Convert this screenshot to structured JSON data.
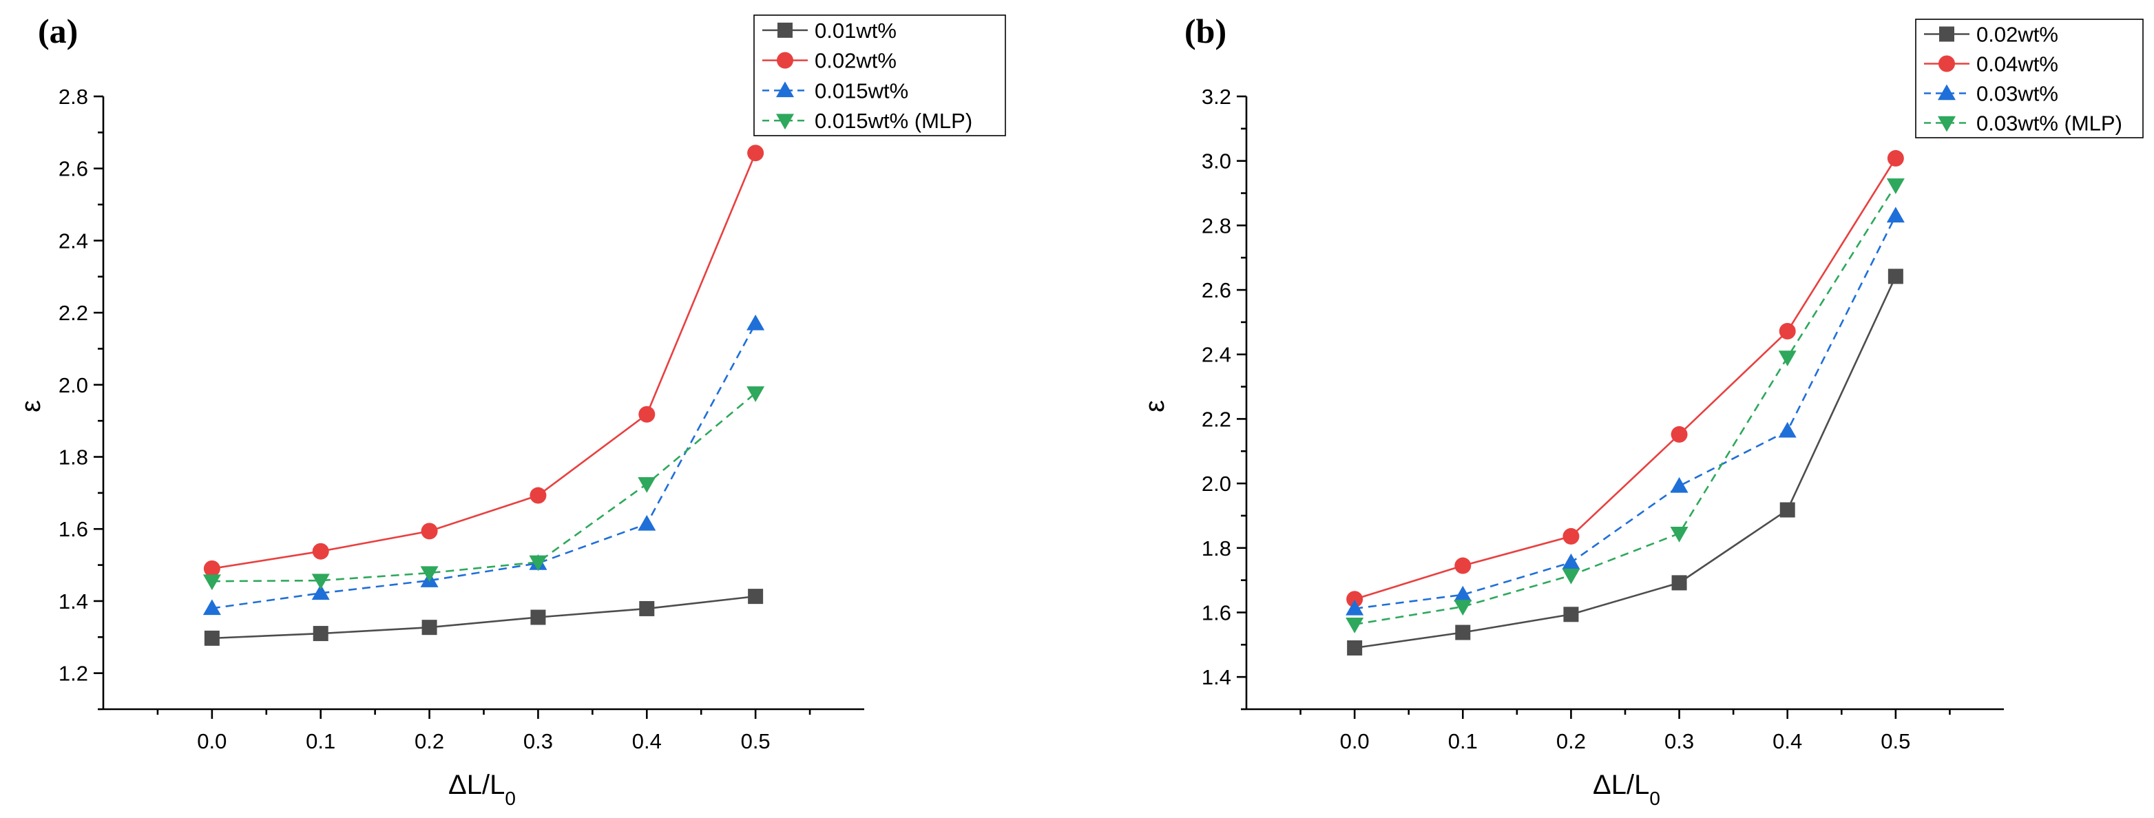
{
  "chart_data": [
    {
      "type": "line",
      "panel_label": "(a)",
      "xlabel": "ΔL/L",
      "xlabel_sub": "0",
      "ylabel": "ε",
      "xlim": [
        -0.1,
        0.6
      ],
      "ylim": [
        1.1,
        2.8
      ],
      "x": [
        0.0,
        0.1,
        0.2,
        0.3,
        0.4,
        0.5
      ],
      "x_tick_labels": [
        "0.0",
        "0.1",
        "0.2",
        "0.3",
        "0.4",
        "0.5"
      ],
      "y_ticks": [
        1.2,
        1.4,
        1.6,
        1.8,
        2.0,
        2.2,
        2.4,
        2.6,
        2.8
      ],
      "y_tick_labels": [
        "1.2",
        "1.4",
        "1.6",
        "1.8",
        "2.0",
        "2.2",
        "2.4",
        "2.6",
        "2.8"
      ],
      "grid": false,
      "legend_position": "top-right",
      "series": [
        {
          "name": "0.01wt%",
          "values": [
            1.297,
            1.31,
            1.327,
            1.355,
            1.379,
            1.413
          ],
          "color": "#4d4d4d",
          "marker": "square",
          "dashed": false
        },
        {
          "name": "0.02wt%",
          "values": [
            1.49,
            1.538,
            1.594,
            1.693,
            1.918,
            2.643
          ],
          "color": "#e8403f",
          "marker": "circle",
          "dashed": false
        },
        {
          "name": "0.015wt%",
          "values": [
            1.38,
            1.422,
            1.457,
            1.505,
            1.614,
            2.17
          ],
          "color": "#1f6fd8",
          "marker": "triangle-up",
          "dashed": true
        },
        {
          "name": "0.015wt% (MLP)",
          "values": [
            1.455,
            1.457,
            1.478,
            1.508,
            1.725,
            1.977
          ],
          "color": "#2ea85c",
          "marker": "triangle-down",
          "dashed": true
        }
      ]
    },
    {
      "type": "line",
      "panel_label": "(b)",
      "xlabel": "ΔL/L",
      "xlabel_sub": "0",
      "ylabel": "ε",
      "xlim": [
        -0.1,
        0.6
      ],
      "ylim": [
        1.3,
        3.2
      ],
      "x": [
        0.0,
        0.1,
        0.2,
        0.3,
        0.4,
        0.5
      ],
      "x_tick_labels": [
        "0.0",
        "0.1",
        "0.2",
        "0.3",
        "0.4",
        "0.5"
      ],
      "y_ticks": [
        1.4,
        1.6,
        1.8,
        2.0,
        2.2,
        2.4,
        2.6,
        2.8,
        3.0,
        3.2
      ],
      "y_tick_labels": [
        "1.4",
        "1.6",
        "1.8",
        "2.0",
        "2.2",
        "2.4",
        "2.6",
        "2.8",
        "3.0",
        "3.2"
      ],
      "grid": false,
      "legend_position": "top-right",
      "series": [
        {
          "name": "0.02wt%",
          "values": [
            1.49,
            1.538,
            1.594,
            1.692,
            1.918,
            2.642
          ],
          "color": "#4d4d4d",
          "marker": "square",
          "dashed": false
        },
        {
          "name": "0.04wt%",
          "values": [
            1.641,
            1.745,
            1.836,
            2.152,
            2.472,
            3.008
          ],
          "color": "#e8403f",
          "marker": "circle",
          "dashed": false
        },
        {
          "name": "0.03wt%",
          "values": [
            1.612,
            1.655,
            1.755,
            1.992,
            2.163,
            2.83
          ],
          "color": "#1f6fd8",
          "marker": "triangle-up",
          "dashed": true
        },
        {
          "name": "0.03wt% (MLP)",
          "values": [
            1.563,
            1.618,
            1.715,
            1.845,
            2.391,
            2.925
          ],
          "color": "#2ea85c",
          "marker": "triangle-down",
          "dashed": true
        }
      ]
    }
  ]
}
